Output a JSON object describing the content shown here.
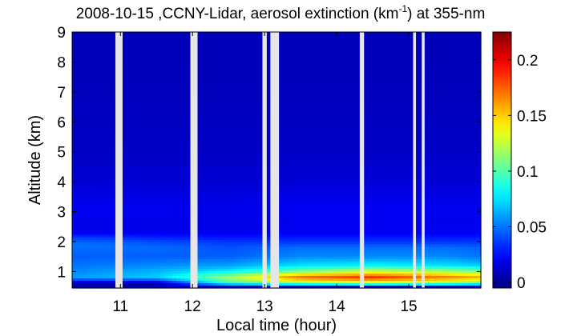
{
  "chart_data": {
    "type": "heatmap",
    "title": {
      "prefix": "2008-10-15 ,CCNY-Lidar, aerosol extinction (km",
      "superscript": "-1",
      "suffix": ") at 355-nm"
    },
    "xlabel": "Local time (hour)",
    "ylabel": "Altitude (km)",
    "xlim": [
      10.33,
      16.0
    ],
    "ylim": [
      0.45,
      9.0
    ],
    "x_ticks": [
      11,
      12,
      13,
      14,
      15
    ],
    "y_ticks": [
      1,
      2,
      3,
      4,
      5,
      6,
      7,
      8,
      9
    ],
    "colorbar": {
      "range": [
        -0.005,
        0.225
      ],
      "ticks": [
        0,
        0.05,
        0.1,
        0.15,
        0.2
      ],
      "tick_labels": [
        "0",
        "0.05",
        "0.1",
        "0.15",
        "0.2"
      ],
      "colormap": "jet"
    },
    "data_gaps_hours": [
      [
        10.93,
        11.03
      ],
      [
        11.97,
        12.07
      ],
      [
        12.97,
        13.03
      ],
      [
        13.08,
        13.2
      ],
      [
        14.32,
        14.38
      ],
      [
        15.06,
        15.1
      ],
      [
        15.18,
        15.22
      ]
    ],
    "profiles": [
      {
        "time": 10.4,
        "altitudes_km": [
          0.45,
          0.5,
          0.6,
          0.8,
          1.0,
          1.2,
          1.5,
          1.9,
          2.1,
          2.3,
          2.6,
          3.0,
          4.0,
          5.0,
          6.5,
          9.0
        ],
        "extinction_km-1": [
          0.015,
          0.005,
          0.005,
          0.06,
          0.055,
          0.05,
          0.045,
          0.05,
          0.04,
          0.02,
          0.018,
          0.022,
          0.014,
          0.011,
          0.009,
          0.008
        ]
      },
      {
        "time": 11.5,
        "altitudes_km": [
          0.45,
          0.5,
          0.6,
          0.8,
          1.0,
          1.2,
          1.5,
          1.8,
          2.0,
          2.3,
          2.6,
          3.0,
          4.0,
          5.0,
          6.5,
          9.0
        ],
        "extinction_km-1": [
          0.015,
          0.005,
          0.005,
          0.07,
          0.065,
          0.055,
          0.045,
          0.048,
          0.04,
          0.02,
          0.018,
          0.021,
          0.014,
          0.011,
          0.009,
          0.008
        ]
      },
      {
        "time": 12.5,
        "altitudes_km": [
          0.45,
          0.5,
          0.6,
          0.8,
          1.0,
          1.2,
          1.5,
          1.8,
          2.0,
          2.3,
          2.6,
          3.0,
          4.0,
          5.0,
          6.5,
          9.0
        ],
        "extinction_km-1": [
          0.02,
          0.01,
          0.09,
          0.12,
          0.08,
          0.06,
          0.045,
          0.042,
          0.035,
          0.02,
          0.018,
          0.02,
          0.014,
          0.011,
          0.009,
          0.008
        ]
      },
      {
        "time": 13.5,
        "altitudes_km": [
          0.45,
          0.5,
          0.6,
          0.8,
          1.0,
          1.2,
          1.5,
          1.8,
          2.0,
          2.3,
          2.6,
          3.0,
          4.0,
          5.0,
          6.5,
          9.0
        ],
        "extinction_km-1": [
          0.02,
          0.01,
          0.11,
          0.175,
          0.11,
          0.075,
          0.055,
          0.048,
          0.035,
          0.022,
          0.02,
          0.022,
          0.015,
          0.011,
          0.009,
          0.008
        ]
      },
      {
        "time": 14.5,
        "altitudes_km": [
          0.45,
          0.5,
          0.6,
          0.8,
          1.0,
          1.2,
          1.5,
          1.8,
          2.0,
          2.3,
          2.6,
          3.0,
          4.0,
          5.0,
          6.5,
          9.0
        ],
        "extinction_km-1": [
          0.02,
          0.01,
          0.12,
          0.19,
          0.13,
          0.08,
          0.055,
          0.048,
          0.035,
          0.022,
          0.02,
          0.022,
          0.015,
          0.011,
          0.009,
          0.008
        ]
      },
      {
        "time": 15.5,
        "altitudes_km": [
          0.45,
          0.5,
          0.6,
          0.8,
          1.0,
          1.2,
          1.5,
          1.8,
          2.0,
          2.3,
          2.6,
          3.0,
          4.0,
          5.0,
          6.5,
          9.0
        ],
        "extinction_km-1": [
          0.02,
          0.01,
          0.11,
          0.17,
          0.12,
          0.075,
          0.055,
          0.048,
          0.035,
          0.022,
          0.02,
          0.021,
          0.015,
          0.011,
          0.009,
          0.008
        ]
      },
      {
        "time": 16.0,
        "altitudes_km": [
          0.45,
          0.5,
          0.6,
          0.8,
          1.0,
          1.2,
          1.5,
          1.8,
          2.0,
          2.3,
          2.6,
          3.0,
          4.0,
          5.0,
          6.5,
          9.0
        ],
        "extinction_km-1": [
          0.02,
          0.01,
          0.1,
          0.16,
          0.11,
          0.07,
          0.05,
          0.046,
          0.035,
          0.022,
          0.02,
          0.021,
          0.015,
          0.011,
          0.009,
          0.008
        ]
      }
    ]
  }
}
